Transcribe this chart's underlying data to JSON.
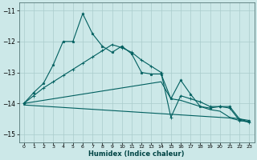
{
  "xlabel": "Humidex (Indice chaleur)",
  "background_color": "#cce8e8",
  "grid_color": "#aacccc",
  "line_color": "#005f5f",
  "x_ticks": [
    0,
    1,
    2,
    3,
    4,
    5,
    6,
    7,
    8,
    9,
    10,
    11,
    12,
    13,
    14,
    15,
    16,
    17,
    18,
    19,
    20,
    21,
    22,
    23
  ],
  "ylim": [
    -15.25,
    -10.75
  ],
  "yticks": [
    -15,
    -14,
    -13,
    -12,
    -11
  ],
  "series1_x": [
    0,
    1,
    2,
    3,
    4,
    5,
    6,
    7,
    8,
    9,
    10,
    11,
    12,
    13,
    14,
    15,
    16,
    17,
    18,
    19,
    20,
    21,
    22,
    23
  ],
  "series1_y": [
    -14.0,
    -13.65,
    -13.35,
    -12.75,
    -12.0,
    -12.0,
    -11.1,
    -11.75,
    -12.15,
    -12.35,
    -12.15,
    -12.4,
    -13.0,
    -13.05,
    -13.05,
    -13.85,
    -13.25,
    -13.7,
    -14.1,
    -14.15,
    -14.1,
    -14.1,
    -14.5,
    -14.55
  ],
  "series2_x": [
    0,
    1,
    2,
    3,
    4,
    5,
    6,
    7,
    8,
    9,
    10,
    11,
    12,
    13,
    14,
    15,
    16,
    17,
    18,
    19,
    20,
    21,
    22,
    23
  ],
  "series2_y": [
    -14.0,
    -13.75,
    -13.5,
    -13.3,
    -13.1,
    -12.9,
    -12.7,
    -12.5,
    -12.3,
    -12.1,
    -12.2,
    -12.35,
    -12.6,
    -12.8,
    -13.0,
    -14.45,
    -13.75,
    -13.85,
    -13.95,
    -14.1,
    -14.1,
    -14.15,
    -14.55,
    -14.6
  ],
  "series3_x": [
    0,
    1,
    2,
    3,
    4,
    5,
    6,
    7,
    8,
    9,
    10,
    11,
    12,
    13,
    14,
    15,
    16,
    17,
    18,
    19,
    20,
    21,
    22,
    23
  ],
  "series3_y": [
    -14.0,
    -13.95,
    -13.9,
    -13.85,
    -13.8,
    -13.75,
    -13.7,
    -13.65,
    -13.6,
    -13.55,
    -13.5,
    -13.45,
    -13.4,
    -13.35,
    -13.3,
    -13.85,
    -13.9,
    -14.0,
    -14.1,
    -14.2,
    -14.25,
    -14.45,
    -14.5,
    -14.6
  ],
  "series4_x": [
    0,
    1,
    2,
    3,
    4,
    5,
    6,
    7,
    8,
    9,
    10,
    11,
    12,
    13,
    14,
    15,
    16,
    17,
    18,
    19,
    20,
    21,
    22,
    23
  ],
  "series4_y": [
    -14.05,
    -14.07,
    -14.09,
    -14.11,
    -14.13,
    -14.15,
    -14.17,
    -14.19,
    -14.21,
    -14.23,
    -14.25,
    -14.27,
    -14.29,
    -14.31,
    -14.33,
    -14.35,
    -14.37,
    -14.39,
    -14.41,
    -14.43,
    -14.45,
    -14.47,
    -14.55,
    -14.6
  ]
}
